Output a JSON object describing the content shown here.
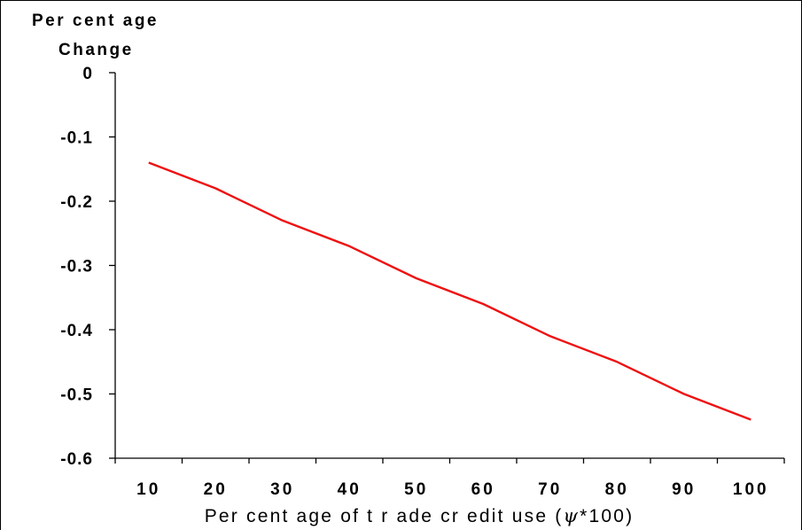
{
  "chart_data": {
    "type": "line",
    "title": "",
    "ylabel_lines": [
      "Per cent age",
      "Change"
    ],
    "xlabel_pre": "Per cent age of  t r ade cr edit  use (",
    "xlabel_symbol": "ψ",
    "xlabel_post": "*100)",
    "categories": [
      "10",
      "20",
      "30",
      "40",
      "50",
      "60",
      "70",
      "80",
      "90",
      "100"
    ],
    "ylim": [
      -0.6,
      0
    ],
    "yticks": [
      "0",
      "-0.1",
      "-0.2",
      "-0.3",
      "-0.4",
      "-0.5",
      "-0.6"
    ],
    "grid": false,
    "series": [
      {
        "color": "#ee1111",
        "values": [
          -0.14,
          -0.18,
          -0.23,
          -0.27,
          -0.32,
          -0.36,
          -0.41,
          -0.45,
          -0.5,
          -0.54
        ]
      }
    ]
  }
}
